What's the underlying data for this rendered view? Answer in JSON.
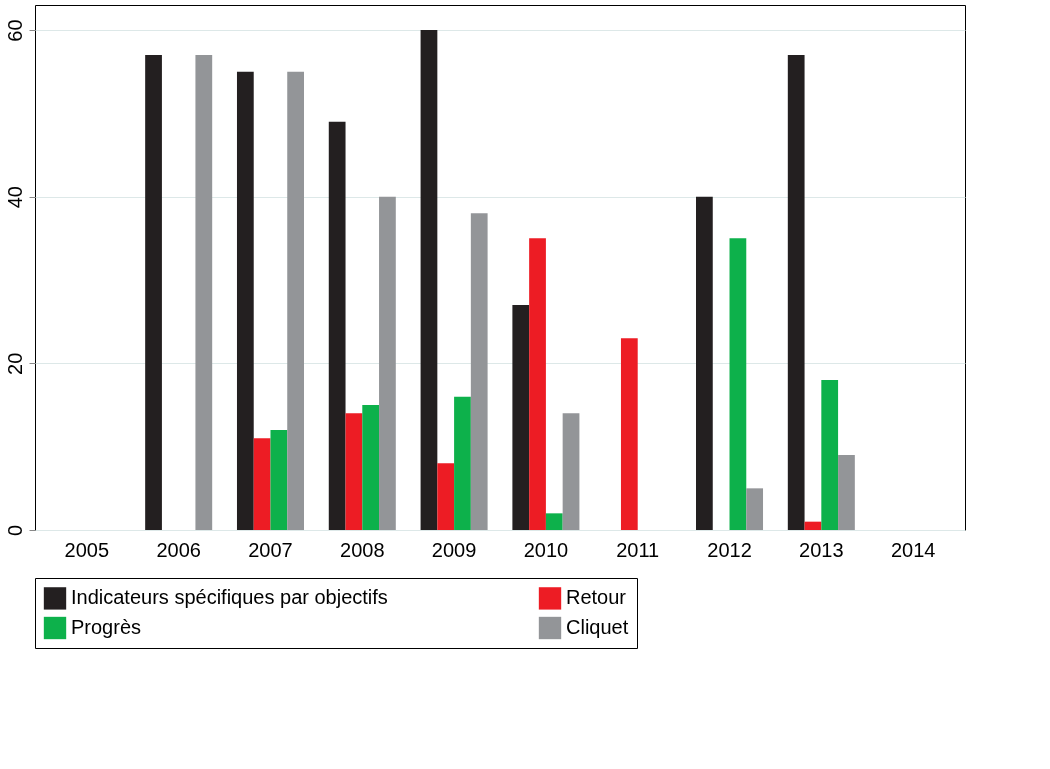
{
  "chart_data": {
    "type": "bar",
    "categories": [
      "2005",
      "2006",
      "2007",
      "2008",
      "2009",
      "2010",
      "2011",
      "2012",
      "2013",
      "2014"
    ],
    "series": [
      {
        "name": "Indicateurs spécifiques par objectifs",
        "color": "#231f20",
        "values": [
          0,
          57,
          55,
          49,
          60,
          27,
          0,
          40,
          57,
          0
        ]
      },
      {
        "name": "Retour",
        "color": "#ed1c24",
        "values": [
          0,
          0,
          11,
          14,
          8,
          35,
          23,
          0,
          1,
          0
        ]
      },
      {
        "name": "Progrès",
        "color": "#0db14b",
        "values": [
          0,
          0,
          12,
          15,
          16,
          2,
          0,
          35,
          18,
          0
        ]
      },
      {
        "name": "Cliquet",
        "color": "#939598",
        "values": [
          0,
          57,
          55,
          40,
          38,
          14,
          0,
          5,
          9,
          0
        ]
      }
    ],
    "ylim": [
      0,
      63
    ],
    "yticks": [
      0,
      20,
      40,
      60
    ],
    "grid": "y",
    "legend": "bottom"
  }
}
